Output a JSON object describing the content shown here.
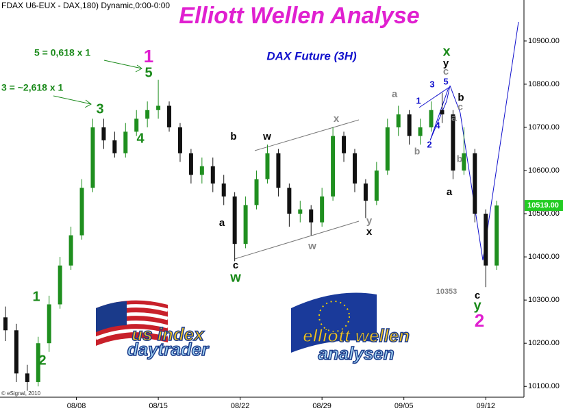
{
  "chart_data": {
    "type": "candlestick",
    "header": "FDAX U6-EUX - DAX,180) Dynamic,0:00-0:00",
    "title": "Elliott Wellen Analyse",
    "subtitle": "DAX Future (3H)",
    "copyright": "© eSignal, 2010",
    "up_color": "#1f8f1f",
    "down_color": "#111111",
    "x": [
      1,
      3,
      5,
      7,
      9,
      11,
      13,
      15,
      17,
      19,
      21,
      23,
      25,
      27,
      29,
      31,
      33,
      35,
      37,
      39,
      41,
      43,
      45,
      47,
      49,
      51,
      53,
      55,
      57,
      59,
      61,
      63,
      65,
      67,
      69,
      71,
      73,
      75,
      77,
      79,
      81,
      83,
      85,
      87,
      89,
      91
    ],
    "open": [
      10260,
      10230,
      10130,
      10110,
      10200,
      10290,
      10380,
      10450,
      10560,
      10700,
      10670,
      10640,
      10690,
      10720,
      10740,
      10750,
      10700,
      10640,
      10590,
      10610,
      10570,
      10540,
      10430,
      10520,
      10580,
      10640,
      10560,
      10500,
      10510,
      10480,
      10540,
      10680,
      10640,
      10570,
      10530,
      10600,
      10700,
      10730,
      10680,
      10700,
      10740,
      10730,
      10600,
      10640,
      10500,
      10380
    ],
    "high": [
      10285,
      10245,
      10150,
      10215,
      10310,
      10400,
      10470,
      10580,
      10720,
      10720,
      10690,
      10710,
      10740,
      10760,
      10810,
      10760,
      10710,
      10650,
      10630,
      10630,
      10590,
      10550,
      10540,
      10600,
      10660,
      10650,
      10570,
      10530,
      10520,
      10560,
      10700,
      10690,
      10650,
      10580,
      10620,
      10720,
      10750,
      10740,
      10720,
      10760,
      10780,
      10740,
      10700,
      10650,
      10510,
      10530
    ],
    "low": [
      10205,
      10110,
      10090,
      10100,
      10180,
      10280,
      10370,
      10440,
      10550,
      10650,
      10630,
      10630,
      10680,
      10700,
      10720,
      10690,
      10620,
      10570,
      10570,
      10550,
      10520,
      10390,
      10420,
      10510,
      10570,
      10540,
      10470,
      10480,
      10450,
      10470,
      10530,
      10620,
      10550,
      10490,
      10520,
      10590,
      10680,
      10660,
      10660,
      10690,
      10710,
      10580,
      10590,
      10480,
      10330,
      10370
    ],
    "close": [
      10230,
      10130,
      10110,
      10200,
      10290,
      10380,
      10450,
      10560,
      10700,
      10670,
      10640,
      10690,
      10720,
      10740,
      10750,
      10700,
      10640,
      10590,
      10610,
      10570,
      10540,
      10430,
      10520,
      10580,
      10640,
      10560,
      10500,
      10510,
      10480,
      10540,
      10680,
      10640,
      10570,
      10530,
      10600,
      10700,
      10730,
      10680,
      10700,
      10740,
      10730,
      10600,
      10640,
      10500,
      10380,
      10519
    ],
    "xlim": [
      0,
      96
    ],
    "xticks": [
      {
        "value": 14,
        "label": "08/08"
      },
      {
        "value": 29,
        "label": "08/15"
      },
      {
        "value": 44,
        "label": "08/22"
      },
      {
        "value": 59,
        "label": "08/29"
      },
      {
        "value": 74,
        "label": "09/05"
      },
      {
        "value": 89,
        "label": "09/12"
      }
    ],
    "ylim": [
      10075,
      10995
    ],
    "yticks": [
      {
        "value": 10100,
        "label": "10100.00"
      },
      {
        "value": 10200,
        "label": "10200.00"
      },
      {
        "value": 10300,
        "label": "10300.00"
      },
      {
        "value": 10400,
        "label": "10400.00"
      },
      {
        "value": 10500,
        "label": "10500.00"
      },
      {
        "value": 10600,
        "label": "10600.00"
      },
      {
        "value": 10700,
        "label": "10700.00"
      },
      {
        "value": 10800,
        "label": "10800.00"
      },
      {
        "value": 10900,
        "label": "10900.00"
      }
    ],
    "last_price": {
      "value": 10519,
      "label": "10519.00",
      "color": "#22cc22"
    },
    "annotations": [
      {
        "text": "5 = 0,618 x 1",
        "color": "#1a8a1a"
      },
      {
        "text": "3 = ~2,618 x 1",
        "color": "#1a8a1a"
      },
      {
        "text": "1",
        "color": "#e020d0"
      },
      {
        "text": "5",
        "color": "#1a8a1a"
      },
      {
        "text": "3",
        "color": "#1a8a1a"
      },
      {
        "text": "4",
        "color": "#1a8a1a"
      },
      {
        "text": "1",
        "color": "#1a8a1a"
      },
      {
        "text": "2",
        "color": "#1a8a1a"
      },
      {
        "text": "a",
        "color": "#000000"
      },
      {
        "text": "b",
        "color": "#000000"
      },
      {
        "text": "c",
        "color": "#000000"
      },
      {
        "text": "w",
        "color": "#1a8a1a"
      },
      {
        "text": "w",
        "color": "#000000"
      },
      {
        "text": "x",
        "color": "#888888"
      },
      {
        "text": "w",
        "color": "#888888"
      },
      {
        "text": "y",
        "color": "#888888"
      },
      {
        "text": "x",
        "color": "#000000"
      },
      {
        "text": "a",
        "color": "#888888"
      },
      {
        "text": "x",
        "color": "#1a8a1a"
      },
      {
        "text": "y",
        "color": "#000000"
      },
      {
        "text": "c",
        "color": "#888888"
      },
      {
        "text": "5",
        "color": "#1010cc"
      },
      {
        "text": "3",
        "color": "#1010cc"
      },
      {
        "text": "1",
        "color": "#1010cc"
      },
      {
        "text": "2",
        "color": "#1010cc"
      },
      {
        "text": "4",
        "color": "#1010cc"
      },
      {
        "text": "b",
        "color": "#888888"
      },
      {
        "text": "b",
        "color": "#000000"
      },
      {
        "text": "c",
        "color": "#888888"
      },
      {
        "text": "a",
        "color": "#888888"
      },
      {
        "text": "b",
        "color": "#888888"
      },
      {
        "text": "a",
        "color": "#000000"
      },
      {
        "text": "10353",
        "color": "#888888"
      },
      {
        "text": "c",
        "color": "#000000"
      },
      {
        "text": "y",
        "color": "#1a8a1a"
      },
      {
        "text": "2",
        "color": "#e020d0"
      }
    ],
    "logos": [
      {
        "line1": "us index",
        "line2": "daytrader"
      },
      {
        "line1": "elliott wellen",
        "line2": "analysen"
      }
    ]
  }
}
